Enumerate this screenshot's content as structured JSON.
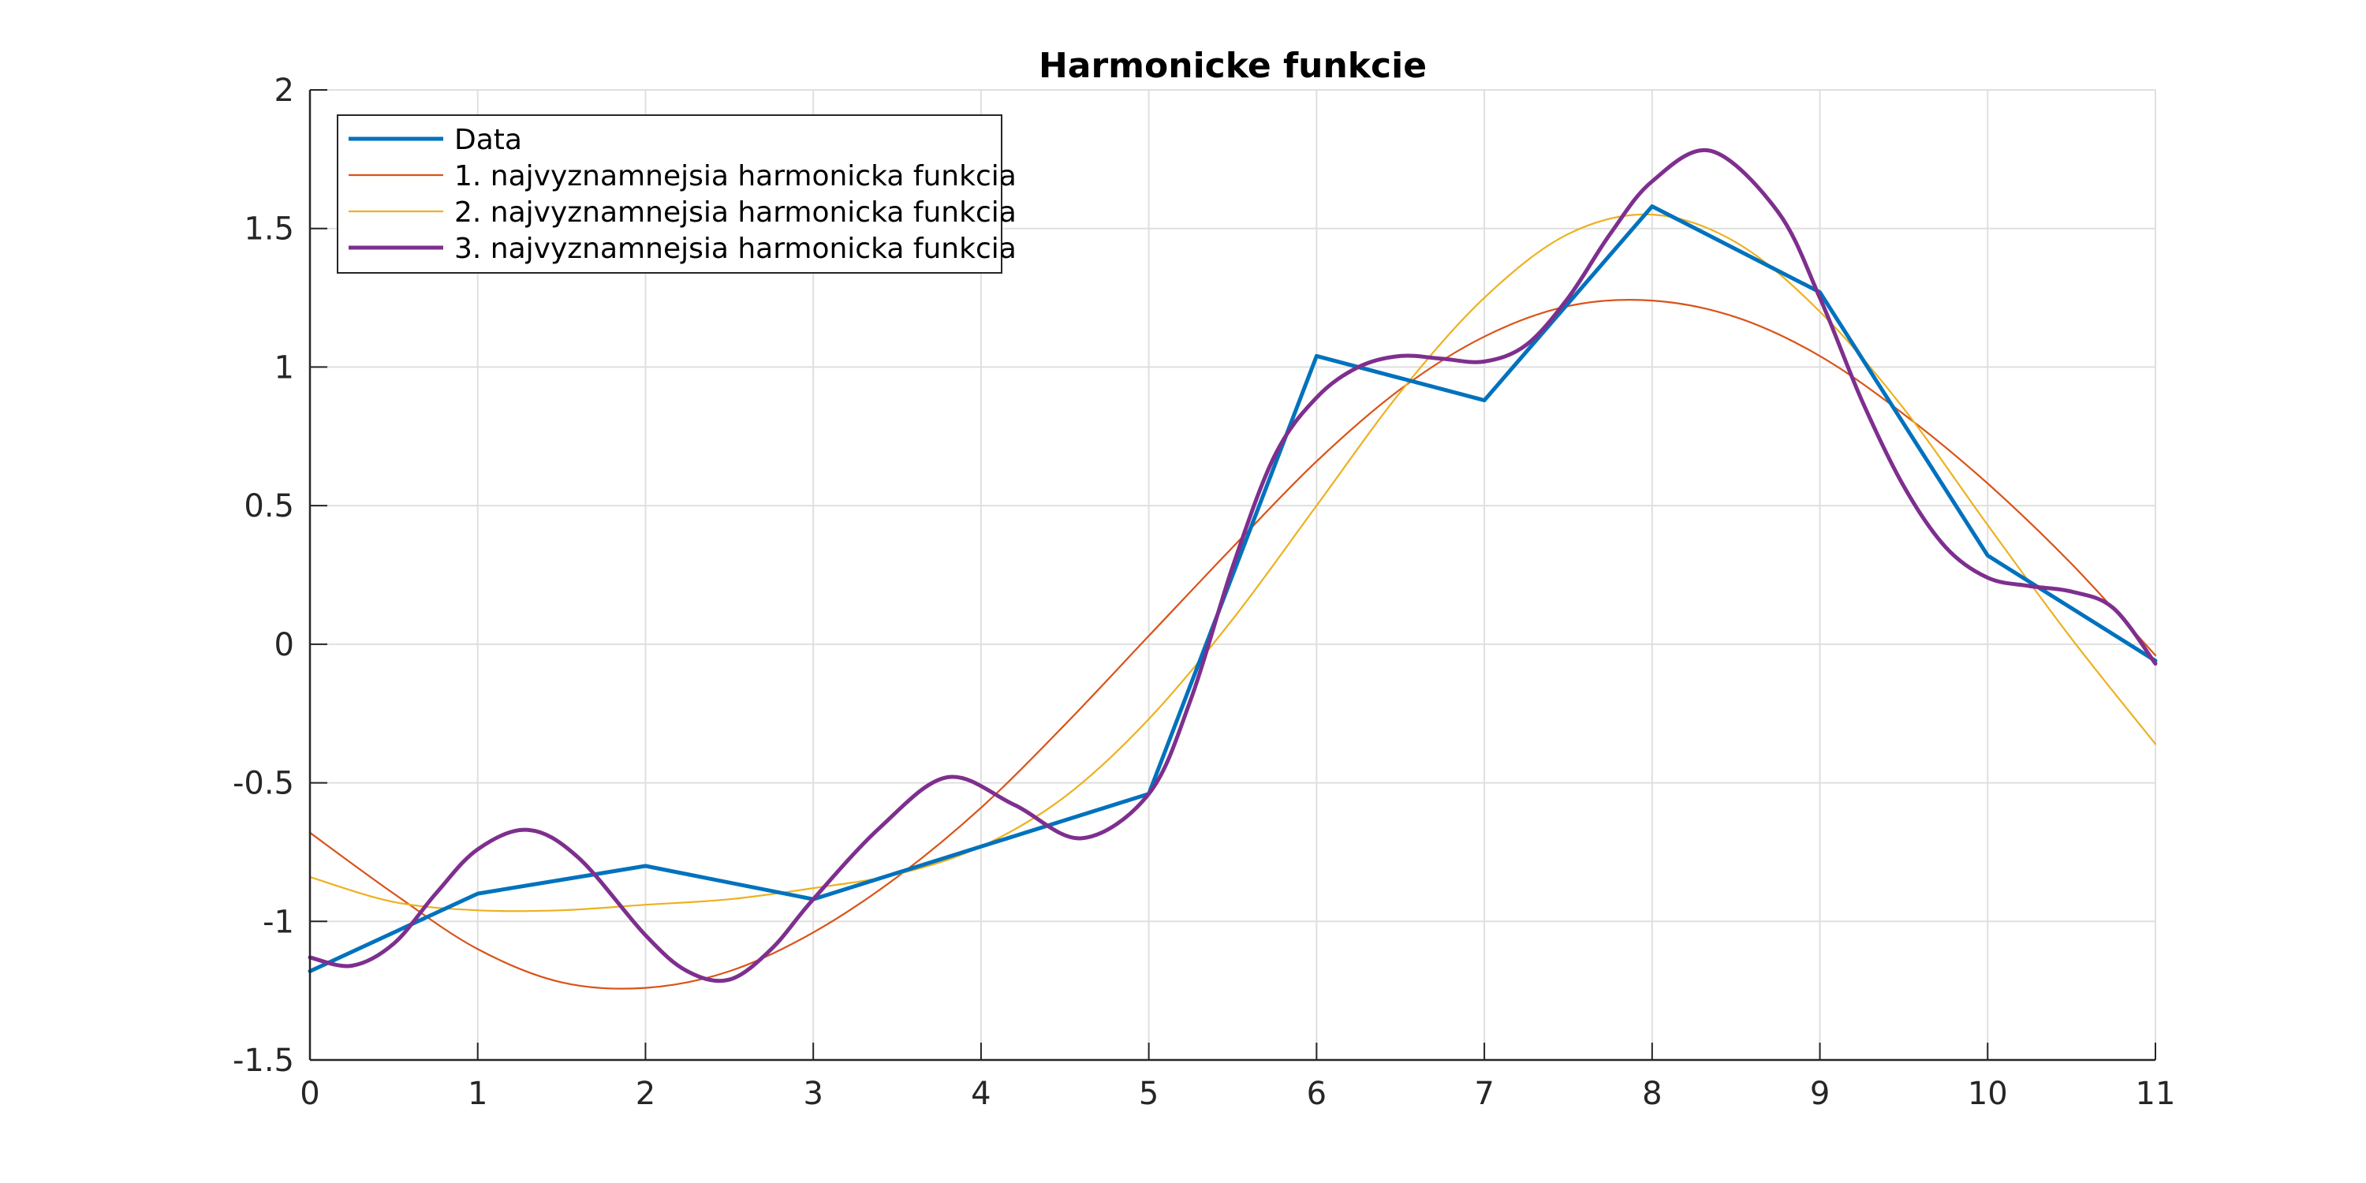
{
  "chart_data": {
    "type": "line",
    "title": "Harmonicke funkcie",
    "xlabel": "",
    "ylabel": "",
    "xlim": [
      0,
      11
    ],
    "ylim": [
      -1.5,
      2
    ],
    "xticks": [
      "0",
      "1",
      "2",
      "3",
      "4",
      "5",
      "6",
      "7",
      "8",
      "9",
      "10",
      "11"
    ],
    "yticks": [
      "-1.5",
      "-1",
      "-0.5",
      "0",
      "0.5",
      "1",
      "1.5",
      "2"
    ],
    "grid": true,
    "legend_position": "top-left",
    "series": [
      {
        "name": "Data",
        "color": "#0072BD",
        "style": "thick",
        "x": [
          0,
          1,
          2,
          3,
          4,
          5,
          6,
          7,
          8,
          9,
          10,
          11
        ],
        "values": [
          -1.18,
          -0.9,
          -0.8,
          -0.92,
          -0.73,
          -0.54,
          1.04,
          0.88,
          1.58,
          1.27,
          0.32,
          -0.06
        ]
      },
      {
        "name": "1. najvyznamnejsia harmonicka funkcia",
        "color": "#D95319",
        "style": "thin",
        "x": [
          0,
          0.5,
          1,
          1.5,
          2,
          2.5,
          3,
          3.5,
          4,
          4.5,
          5,
          5.5,
          6,
          6.5,
          7,
          7.5,
          8,
          8.5,
          9,
          9.5,
          10,
          10.5,
          11
        ],
        "values": [
          -0.68,
          -0.9,
          -1.1,
          -1.22,
          -1.24,
          -1.18,
          -1.04,
          -0.84,
          -0.59,
          -0.29,
          0.03,
          0.35,
          0.66,
          0.92,
          1.11,
          1.22,
          1.24,
          1.18,
          1.04,
          0.83,
          0.58,
          0.29,
          -0.04
        ]
      },
      {
        "name": "2. najvyznamnejsia harmonicka funkcia",
        "color": "#EDB120",
        "style": "thin",
        "x": [
          0,
          0.5,
          1,
          1.5,
          2,
          2.5,
          3,
          3.5,
          4,
          4.5,
          5,
          5.5,
          6,
          6.5,
          7,
          7.5,
          8,
          8.5,
          9,
          9.5,
          10,
          10.5,
          11
        ],
        "values": [
          -0.84,
          -0.93,
          -0.96,
          -0.96,
          -0.94,
          -0.92,
          -0.88,
          -0.83,
          -0.73,
          -0.55,
          -0.27,
          0.09,
          0.5,
          0.91,
          1.25,
          1.48,
          1.55,
          1.45,
          1.2,
          0.85,
          0.43,
          0.02,
          -0.36
        ]
      },
      {
        "name": "3. najvyznamnejsia harmonicka funkcia",
        "color": "#7E2F8E",
        "style": "thick",
        "x": [
          0,
          0.25,
          0.5,
          0.75,
          1,
          1.3,
          1.6,
          2,
          2.25,
          2.5,
          2.75,
          3,
          3.4,
          3.8,
          4.2,
          4.6,
          5,
          5.25,
          5.5,
          5.75,
          6,
          6.25,
          6.5,
          6.75,
          7,
          7.25,
          7.5,
          7.75,
          8,
          8.35,
          8.75,
          9,
          9.25,
          9.5,
          9.75,
          10,
          10.25,
          10.5,
          10.75,
          11
        ],
        "values": [
          -1.13,
          -1.16,
          -1.08,
          -0.9,
          -0.74,
          -0.67,
          -0.77,
          -1.05,
          -1.18,
          -1.21,
          -1.1,
          -0.92,
          -0.66,
          -0.48,
          -0.58,
          -0.7,
          -0.54,
          -0.2,
          0.28,
          0.68,
          0.89,
          1.0,
          1.04,
          1.03,
          1.02,
          1.08,
          1.25,
          1.48,
          1.67,
          1.78,
          1.56,
          1.25,
          0.88,
          0.57,
          0.35,
          0.24,
          0.21,
          0.19,
          0.13,
          -0.07
        ]
      }
    ]
  }
}
